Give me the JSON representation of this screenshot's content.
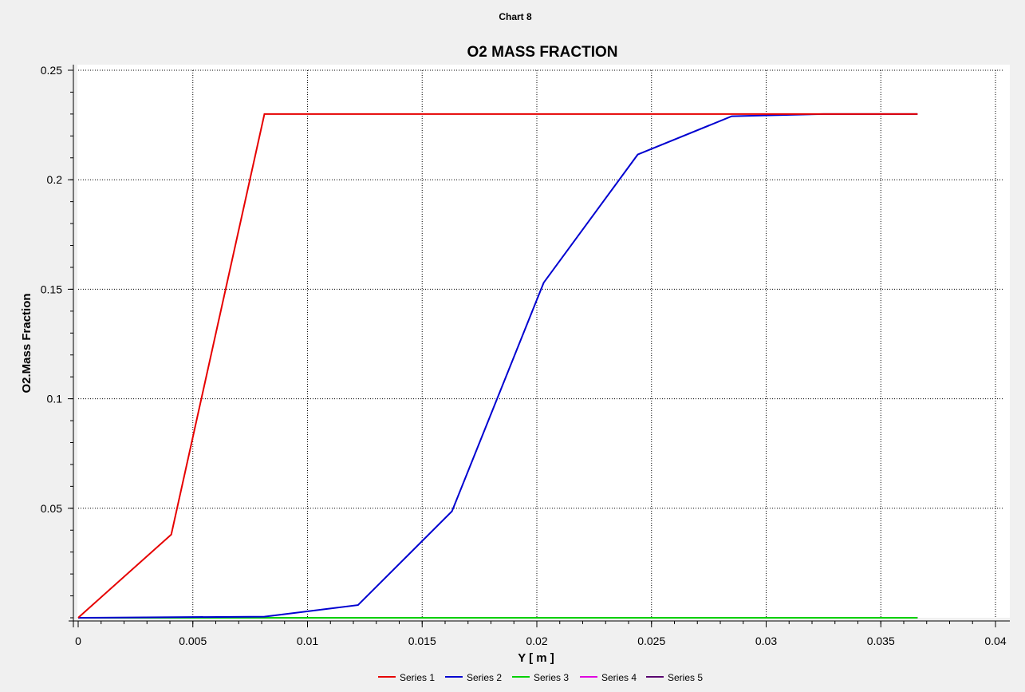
{
  "window": {
    "title": "Chart 8"
  },
  "chart_data": {
    "type": "line",
    "title": "O2 MASS FRACTION",
    "xlabel": "Y [ m ]",
    "ylabel": "O2.Mass Fraction",
    "xlim": [
      0,
      0.04
    ],
    "ylim": [
      0,
      0.25
    ],
    "xticks": [
      "0",
      "0.005",
      "0.01",
      "0.015",
      "0.02",
      "0.025",
      "0.03",
      "0.035",
      "0.04"
    ],
    "yticks": [
      "0.05",
      "0.1",
      "0.15",
      "0.2",
      "0.25"
    ],
    "xtick_values": [
      0,
      0.005,
      0.01,
      0.015,
      0.02,
      0.025,
      0.03,
      0.035,
      0.04
    ],
    "ytick_values": [
      0.05,
      0.1,
      0.15,
      0.2,
      0.25
    ],
    "grid": true,
    "legend_position": "bottom",
    "series": [
      {
        "name": "Series 1",
        "color": "#e60000",
        "x": [
          0,
          0.00406,
          0.00812,
          0.0366
        ],
        "y": [
          0,
          0.038,
          0.23,
          0.23
        ]
      },
      {
        "name": "Series 2",
        "color": "#0000d0",
        "x": [
          0,
          0.00812,
          0.0122,
          0.0163,
          0.0203,
          0.0244,
          0.0285,
          0.0325,
          0.0366
        ],
        "y": [
          0,
          0.0005,
          0.0058,
          0.0486,
          0.153,
          0.2115,
          0.229,
          0.23,
          0.23
        ]
      },
      {
        "name": "Series 3",
        "color": "#00d000",
        "x": [
          0,
          0.0366
        ],
        "y": [
          0,
          0
        ]
      },
      {
        "name": "Series 4",
        "color": "#e000e0",
        "x": [
          0,
          0.0366
        ],
        "y": [
          0,
          0
        ]
      },
      {
        "name": "Series 5",
        "color": "#5a0070",
        "x": [
          0,
          0.0366
        ],
        "y": [
          0,
          0
        ]
      }
    ]
  }
}
